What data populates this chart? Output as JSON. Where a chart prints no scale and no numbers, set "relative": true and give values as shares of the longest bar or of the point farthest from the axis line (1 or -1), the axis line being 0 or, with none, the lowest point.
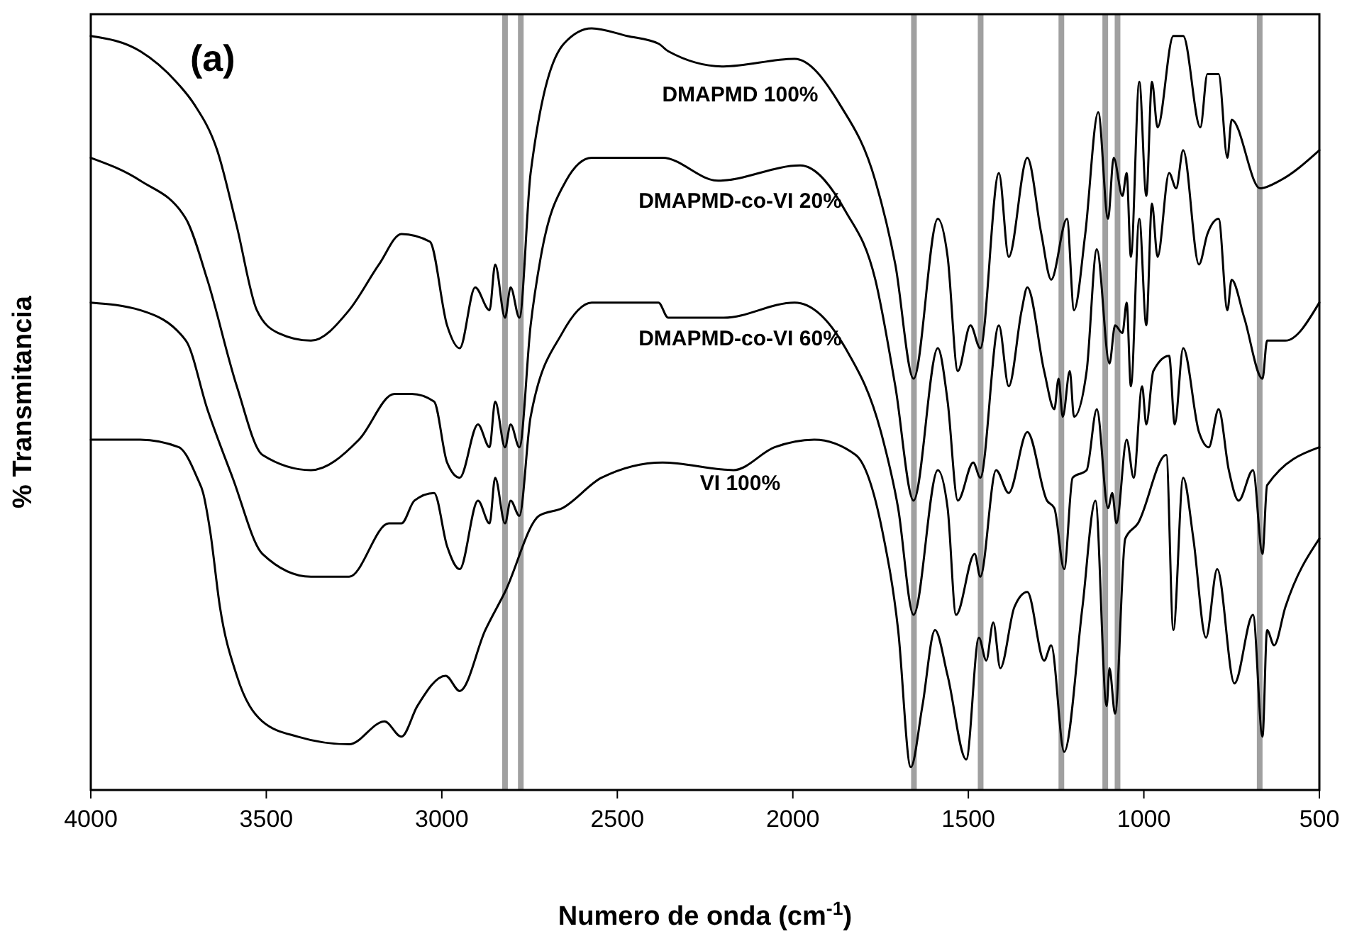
{
  "chart_data": {
    "type": "line",
    "relative": true,
    "xlabel": "Numero de onda (cm$^{-1}$)",
    "ylabel": "% Transmitancia",
    "annotations": [
      "(a)"
    ],
    "xlim": [
      4000,
      500
    ],
    "xticks": [
      4000,
      3500,
      3000,
      2500,
      2000,
      1500,
      1000,
      500
    ],
    "grid": false,
    "marker": "none",
    "line_style": "solid",
    "tick_labels": "x",
    "series": [
      {
        "name": "DMAPMD 100%",
        "color": "#000000",
        "x": [
          4000,
          3859,
          3757,
          3705,
          3640,
          3584,
          3527,
          3466,
          3373,
          3264,
          3179,
          3115,
          3034,
          2985,
          2949,
          2905,
          2864,
          2848,
          2820,
          2804,
          2779,
          2747,
          2652,
          2573,
          2472,
          2383,
          2355,
          2197,
          1995,
          1866,
          1765,
          1708,
          1656,
          1587,
          1559,
          1530,
          1494,
          1466,
          1413,
          1385,
          1332,
          1292,
          1264,
          1219,
          1199,
          1167,
          1130,
          1102,
          1086,
          1061,
          1049,
          1037,
          1013,
          993,
          977,
          961,
          916,
          888,
          839,
          819,
          787,
          762,
          750,
          669,
          613,
          500
        ],
        "values": [
          0.99,
          0.97,
          0.93,
          0.9,
          0.84,
          0.74,
          0.63,
          0.6,
          0.59,
          0.63,
          0.69,
          0.73,
          0.72,
          0.61,
          0.58,
          0.66,
          0.63,
          0.69,
          0.62,
          0.66,
          0.62,
          0.81,
          0.98,
          1,
          0.99,
          0.98,
          0.97,
          0.95,
          0.96,
          0.9,
          0.8,
          0.69,
          0.54,
          0.75,
          0.7,
          0.55,
          0.61,
          0.58,
          0.81,
          0.7,
          0.83,
          0.73,
          0.67,
          0.75,
          0.63,
          0.73,
          0.89,
          0.75,
          0.83,
          0.78,
          0.81,
          0.7,
          0.93,
          0.78,
          0.93,
          0.87,
          0.99,
          0.99,
          0.87,
          0.94,
          0.94,
          0.83,
          0.88,
          0.79,
          0.8,
          0.84
        ]
      },
      {
        "name": "DMAPMD-co-VI 20%",
        "color": "#000000",
        "x": [
          4000,
          3859,
          3729,
          3668,
          3584,
          3511,
          3373,
          3236,
          3135,
          3086,
          3022,
          2985,
          2949,
          2897,
          2864,
          2848,
          2820,
          2804,
          2779,
          2747,
          2718,
          2646,
          2573,
          2472,
          2371,
          2213,
          1979,
          1850,
          1765,
          1708,
          1656,
          1587,
          1559,
          1530,
          1486,
          1466,
          1413,
          1385,
          1348,
          1332,
          1284,
          1255,
          1243,
          1231,
          1211,
          1199,
          1163,
          1134,
          1098,
          1082,
          1061,
          1049,
          1037,
          1013,
          993,
          977,
          961,
          928,
          908,
          888,
          843,
          819,
          787,
          762,
          750,
          714,
          662,
          649,
          597,
          500
        ],
        "values": [
          0.83,
          0.8,
          0.75,
          0.67,
          0.53,
          0.44,
          0.42,
          0.46,
          0.52,
          0.52,
          0.51,
          0.43,
          0.41,
          0.48,
          0.45,
          0.51,
          0.45,
          0.48,
          0.45,
          0.61,
          0.7,
          0.8,
          0.83,
          0.83,
          0.83,
          0.8,
          0.82,
          0.76,
          0.67,
          0.53,
          0.38,
          0.58,
          0.51,
          0.38,
          0.43,
          0.41,
          0.61,
          0.53,
          0.63,
          0.66,
          0.55,
          0.5,
          0.54,
          0.49,
          0.55,
          0.49,
          0.55,
          0.71,
          0.56,
          0.61,
          0.6,
          0.64,
          0.53,
          0.75,
          0.61,
          0.77,
          0.7,
          0.81,
          0.79,
          0.84,
          0.69,
          0.73,
          0.75,
          0.63,
          0.67,
          0.62,
          0.54,
          0.59,
          0.59,
          0.64
        ]
      },
      {
        "name": "DMAPMD-co-VI 60%",
        "color": "#000000",
        "x": [
          4000,
          3859,
          3729,
          3668,
          3596,
          3511,
          3373,
          3264,
          3151,
          3115,
          3078,
          3022,
          2985,
          2949,
          2897,
          2864,
          2848,
          2820,
          2804,
          2779,
          2747,
          2657,
          2573,
          2383,
          2355,
          2197,
          1995,
          1850,
          1749,
          1700,
          1656,
          1587,
          1559,
          1535,
          1482,
          1466,
          1421,
          1385,
          1332,
          1276,
          1255,
          1227,
          1203,
          1163,
          1134,
          1102,
          1090,
          1078,
          1049,
          1029,
          1005,
          993,
          973,
          928,
          912,
          888,
          843,
          815,
          787,
          758,
          730,
          689,
          662,
          649,
          500
        ],
        "values": [
          0.64,
          0.63,
          0.59,
          0.5,
          0.41,
          0.31,
          0.28,
          0.28,
          0.35,
          0.35,
          0.38,
          0.39,
          0.32,
          0.29,
          0.38,
          0.35,
          0.41,
          0.35,
          0.38,
          0.36,
          0.49,
          0.6,
          0.64,
          0.64,
          0.62,
          0.62,
          0.64,
          0.58,
          0.47,
          0.37,
          0.23,
          0.42,
          0.37,
          0.23,
          0.31,
          0.28,
          0.42,
          0.39,
          0.47,
          0.38,
          0.37,
          0.29,
          0.41,
          0.42,
          0.5,
          0.37,
          0.39,
          0.35,
          0.46,
          0.41,
          0.53,
          0.48,
          0.55,
          0.57,
          0.48,
          0.58,
          0.47,
          0.45,
          0.5,
          0.42,
          0.38,
          0.42,
          0.31,
          0.4,
          0.45
        ]
      },
      {
        "name": "VI 100%",
        "color": "#000000",
        "x": [
          4000,
          3859,
          3749,
          3697,
          3680,
          3660,
          3632,
          3584,
          3511,
          3410,
          3264,
          3163,
          3115,
          3070,
          2989,
          2949,
          2876,
          2820,
          2723,
          2657,
          2545,
          2371,
          2169,
          2052,
          1939,
          1821,
          1745,
          1700,
          1664,
          1631,
          1595,
          1559,
          1506,
          1470,
          1449,
          1429,
          1409,
          1369,
          1332,
          1284,
          1264,
          1227,
          1175,
          1138,
          1106,
          1098,
          1082,
          1053,
          1017,
          936,
          916,
          888,
          859,
          823,
          791,
          742,
          689,
          662,
          649,
          629,
          597,
          500
        ],
        "values": [
          0.46,
          0.46,
          0.45,
          0.41,
          0.39,
          0.34,
          0.24,
          0.15,
          0.09,
          0.07,
          0.06,
          0.09,
          0.07,
          0.11,
          0.15,
          0.13,
          0.21,
          0.26,
          0.36,
          0.37,
          0.41,
          0.43,
          0.42,
          0.45,
          0.46,
          0.44,
          0.34,
          0.21,
          0.03,
          0.11,
          0.21,
          0.15,
          0.04,
          0.2,
          0.17,
          0.22,
          0.16,
          0.24,
          0.26,
          0.17,
          0.19,
          0.05,
          0.24,
          0.38,
          0.11,
          0.16,
          0.1,
          0.33,
          0.35,
          0.44,
          0.21,
          0.41,
          0.33,
          0.2,
          0.29,
          0.14,
          0.23,
          0.07,
          0.21,
          0.19,
          0.24,
          0.33
        ]
      }
    ],
    "ref_lines": [
      {
        "axis": "x",
        "value": 2820,
        "color": "#a0a0a0"
      },
      {
        "axis": "x",
        "value": 2775,
        "color": "#a0a0a0"
      },
      {
        "axis": "x",
        "value": 1655,
        "color": "#a0a0a0"
      },
      {
        "axis": "x",
        "value": 1465,
        "color": "#a0a0a0"
      },
      {
        "axis": "x",
        "value": 1235,
        "color": "#a0a0a0"
      },
      {
        "axis": "x",
        "value": 1110,
        "color": "#a0a0a0"
      },
      {
        "axis": "x",
        "value": 1075,
        "color": "#a0a0a0"
      },
      {
        "axis": "x",
        "value": 670,
        "color": "#a0a0a0"
      }
    ]
  }
}
